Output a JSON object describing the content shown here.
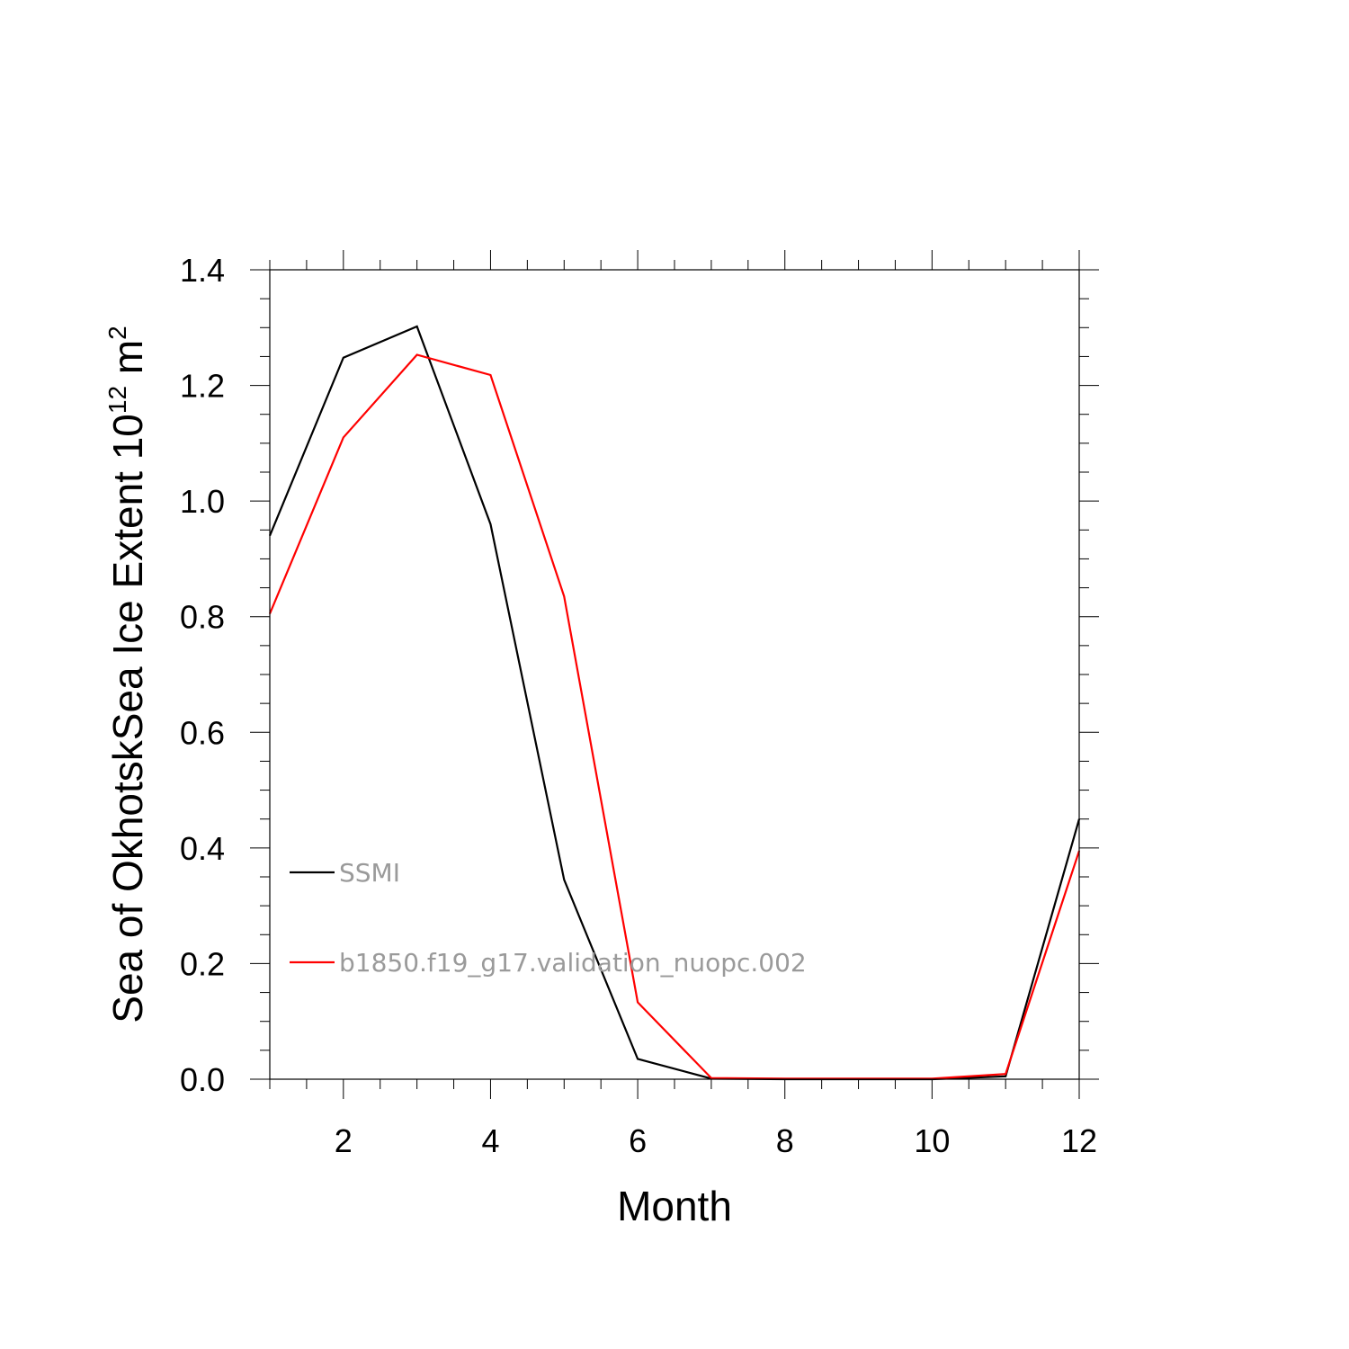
{
  "chart_data": {
    "type": "line",
    "title": "",
    "xlabel": "Month",
    "ylabel": {
      "main": "Sea of OkhotskSea Ice Extent 10",
      "exponent": "12",
      "unit": "m",
      "unit_exponent": "2"
    },
    "xlim": [
      1,
      12
    ],
    "ylim": [
      0,
      1.4
    ],
    "x_ticks": [
      2,
      4,
      6,
      8,
      10,
      12
    ],
    "x_tick_labels": [
      "2",
      "4",
      "6",
      "8",
      "10",
      "12"
    ],
    "y_ticks": [
      0,
      0.2,
      0.4,
      0.6,
      0.8,
      1.0,
      1.2,
      1.4
    ],
    "y_tick_labels": [
      "0.0",
      "0.2",
      "0.4",
      "0.6",
      "0.8",
      "1.0",
      "1.2",
      "1.4"
    ],
    "grid": false,
    "legend_position": "lower-left",
    "x": [
      1,
      2,
      3,
      4,
      5,
      6,
      7,
      8,
      9,
      10,
      11,
      12
    ],
    "series": [
      {
        "name": "SSMI",
        "color": "#000000",
        "values": [
          0.94,
          1.248,
          1.302,
          0.96,
          0.345,
          0.035,
          0.001,
          0.0,
          0.0,
          0.0,
          0.005,
          0.45
        ]
      },
      {
        "name": "b1850.f19_g17.validation_nuopc.002",
        "color": "#ff0000",
        "values": [
          0.805,
          1.11,
          1.253,
          1.218,
          0.835,
          0.133,
          0.002,
          0.001,
          0.001,
          0.001,
          0.009,
          0.395
        ]
      }
    ]
  }
}
